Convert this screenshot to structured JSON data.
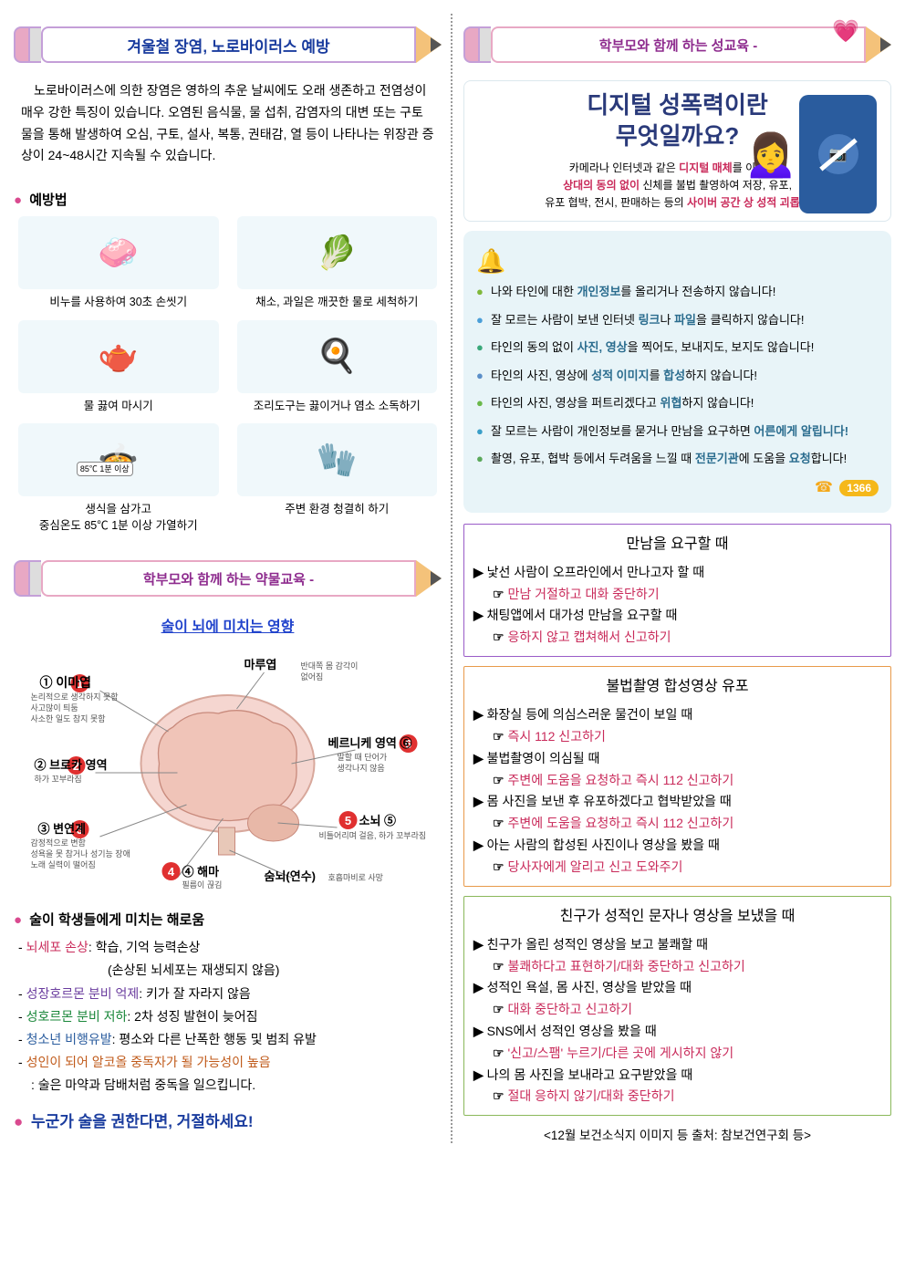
{
  "left": {
    "banner1_title": "겨울철 장염, 노로바이러스 예방",
    "intro": "노로바이러스에 의한 장염은 영하의 추운 날씨에도 오래 생존하고 전염성이 매우 강한 특징이 있습니다. 오염된 음식물, 물 섭취, 감염자의 대변 또는 구토물을 통해 발생하여 오심, 구토, 설사, 복통, 권태감, 열 등이 나타나는 위장관 증상이 24~48시간 지속될 수 있습니다.",
    "prevention_head": "예방법",
    "prevention": [
      {
        "icon": "🧼",
        "caption": "비누를 사용하여 30초 손씻기"
      },
      {
        "icon": "🥬",
        "caption": "채소, 과일은 깨끗한 물로 세척하기"
      },
      {
        "icon": "🫖",
        "caption": "물 끓여 마시기"
      },
      {
        "icon": "🍳",
        "caption": "조리도구는 끓이거나 염소 소독하기"
      },
      {
        "icon": "🍲",
        "caption_line1": "생식을 삼가고",
        "caption_line2": "중심온도 85℃ 1분 이상 가열하기",
        "badge": "85℃ 1분 이상"
      },
      {
        "icon": "🧤",
        "caption": "주변 환경 청결히 하기"
      }
    ],
    "banner2_title": "학부모와 함께 하는 약물교육 -",
    "subtitle_link": "술이 뇌에 미치는 영향",
    "brain_labels": {
      "n1": "① 이마엽",
      "n1_sub": "논리적으로 생각하지 못함\n사고많이 틔둠\n사소한 일도 참지 못함",
      "top": "마루엽",
      "top_sub": "반대쪽 몸 감각이 없어짐",
      "n6": "베르니케 영역 ⑥",
      "n6_sub": "말할 때 단어가 생각나지 않음",
      "n2": "② 브로카 영역",
      "n2_sub": "하가 꼬부라짐",
      "n5": "소뇌 ⑤",
      "n5_sub": "비틀어리며 걸음, 하가 꼬부라짐",
      "n3": "③ 변연계",
      "n3_sub": "감정적으로 변함\n성욕을 못 참거나 성기능 장애\n노래 실력이 떨어짐",
      "n4": "④ 해마",
      "n4_sub": "필름이 끊김",
      "bottom": "숨뇌(연수)",
      "bottom_sub": "호흡마비로 사망"
    },
    "harm_head": "술이 학생들에게 미치는 해로움",
    "harm": [
      {
        "key": "뇌세포 손상",
        "cls": "",
        "text": ": 학습, 기억 능력손상",
        "sub": "(손상된 뇌세포는 재생되지 않음)"
      },
      {
        "key": "성장호르몬 분비 억제",
        "cls": "purple",
        "text": ": 키가 잘 자라지 않음"
      },
      {
        "key": "성호르몬 분비 저하",
        "cls": "green",
        "text": ": 2차 성징 발현이 늦어짐"
      },
      {
        "key": "청소년 비행유발",
        "cls": "blue",
        "text": ": 평소와 다른 난폭한 행동 및 범죄 유발"
      },
      {
        "key": "성인이 되어 알코올 중독자가 될 가능성이 높음",
        "cls": "orange",
        "text": "",
        "sub2": ": 술은 마약과 담배처럼 중독을 일으킵니다."
      }
    ],
    "warn": "누군가 술을 권한다면, 거절하세요!"
  },
  "right": {
    "banner_title": "학부모와 함께 하는 성교육 -",
    "digital": {
      "title_l1": "디지털 성폭력이란",
      "title_l2": "무엇일까요?",
      "sub_l1_a": "카메라나 인터넷과 같은 ",
      "sub_l1_b": "디지털 매체",
      "sub_l1_c": "를 이용하여",
      "sub_l2_a": "상대의 동의 없이 ",
      "sub_l2_b": "신체를 불법 촬영하여 저장, 유포,",
      "sub_l3_a": "유포 협박, 전시, 판매하는 등의 ",
      "sub_l3_b": "사이버 공간 상 성적 괴롭힘"
    },
    "pledge": [
      {
        "pre": "나와 타인에 대한 ",
        "kw": "개인정보",
        "post": "를 올리거나 전송하지 않습니다!"
      },
      {
        "pre": "잘 모르는 사람이 보낸 인터넷 ",
        "kw": "링크",
        "mid": "나 ",
        "kw2": "파일",
        "post": "을 클릭하지 않습니다!"
      },
      {
        "pre": "타인의 동의 없이 ",
        "kw": "사진, 영상",
        "post": "을 찍어도, 보내지도, 보지도 않습니다!"
      },
      {
        "pre": "타인의 사진, 영상에 ",
        "kw": "성적 이미지",
        "mid": "를 ",
        "kw2": "합성",
        "post": "하지 않습니다!"
      },
      {
        "pre": "타인의 사진, 영상을 퍼트리겠다고 ",
        "kw": "위협",
        "post": "하지 않습니다!"
      },
      {
        "pre": "잘 모르는 사람이 개인정보를 묻거나 만남을 요구하면 ",
        "kw": "어른에게 알립니다!",
        "post": ""
      },
      {
        "pre": "촬영, 유포, 협박 등에서 두려움을 느낄 때 ",
        "kw": "전문기관",
        "mid": "에 도움을 ",
        "kw2": "요청",
        "post": "합니다!"
      }
    ],
    "hotline_num": "1366",
    "scenarios": [
      {
        "cls": "purple",
        "title": "만남을 요구할 때",
        "items": [
          {
            "q": "낯선 사람이 오프라인에서 만나고자 할 때",
            "a": "만남 거절하고 대화 중단하기"
          },
          {
            "q": "채팅앱에서 대가성 만남을 요구할 때",
            "a": "응하지 않고 캡쳐해서 신고하기"
          }
        ]
      },
      {
        "cls": "orange",
        "title": "불법촬영 합성영상 유포",
        "items": [
          {
            "q": "화장실 등에 의심스러운 물건이 보일 때",
            "a": "즉시 112 신고하기"
          },
          {
            "q": "불법촬영이 의심될 때",
            "a": "주변에 도움을 요청하고 즉시 112 신고하기"
          },
          {
            "q": "몸 사진을 보낸 후 유포하겠다고 협박받았을 때",
            "a": "주변에 도움을 요청하고 즉시 112 신고하기"
          },
          {
            "q": "아는 사람의 합성된 사진이나 영상을 봤을 때",
            "a": "당사자에게 알리고 신고 도와주기"
          }
        ]
      },
      {
        "cls": "green",
        "title": "친구가 성적인 문자나 영상을 보냈을 때",
        "items": [
          {
            "q": "친구가 올린 성적인 영상을 보고 불쾌할 때",
            "a": "불쾌하다고 표현하기/대화 중단하고 신고하기"
          },
          {
            "q": "성적인 욕설, 몸 사진, 영상을 받았을 때",
            "a": "대화 중단하고 신고하기"
          },
          {
            "q": "SNS에서 성적인 영상을 봤을 때",
            "a": "'신고/스팸' 누르기/다른 곳에 게시하지 않기"
          },
          {
            "q": "나의 몸 사진을 보내라고 요구받았을 때",
            "a": "절대 응하지 않기/대화 중단하기"
          }
        ]
      }
    ],
    "footer": "<12월 보건소식지 이미지 등 출처: 참보건연구회 등>"
  }
}
